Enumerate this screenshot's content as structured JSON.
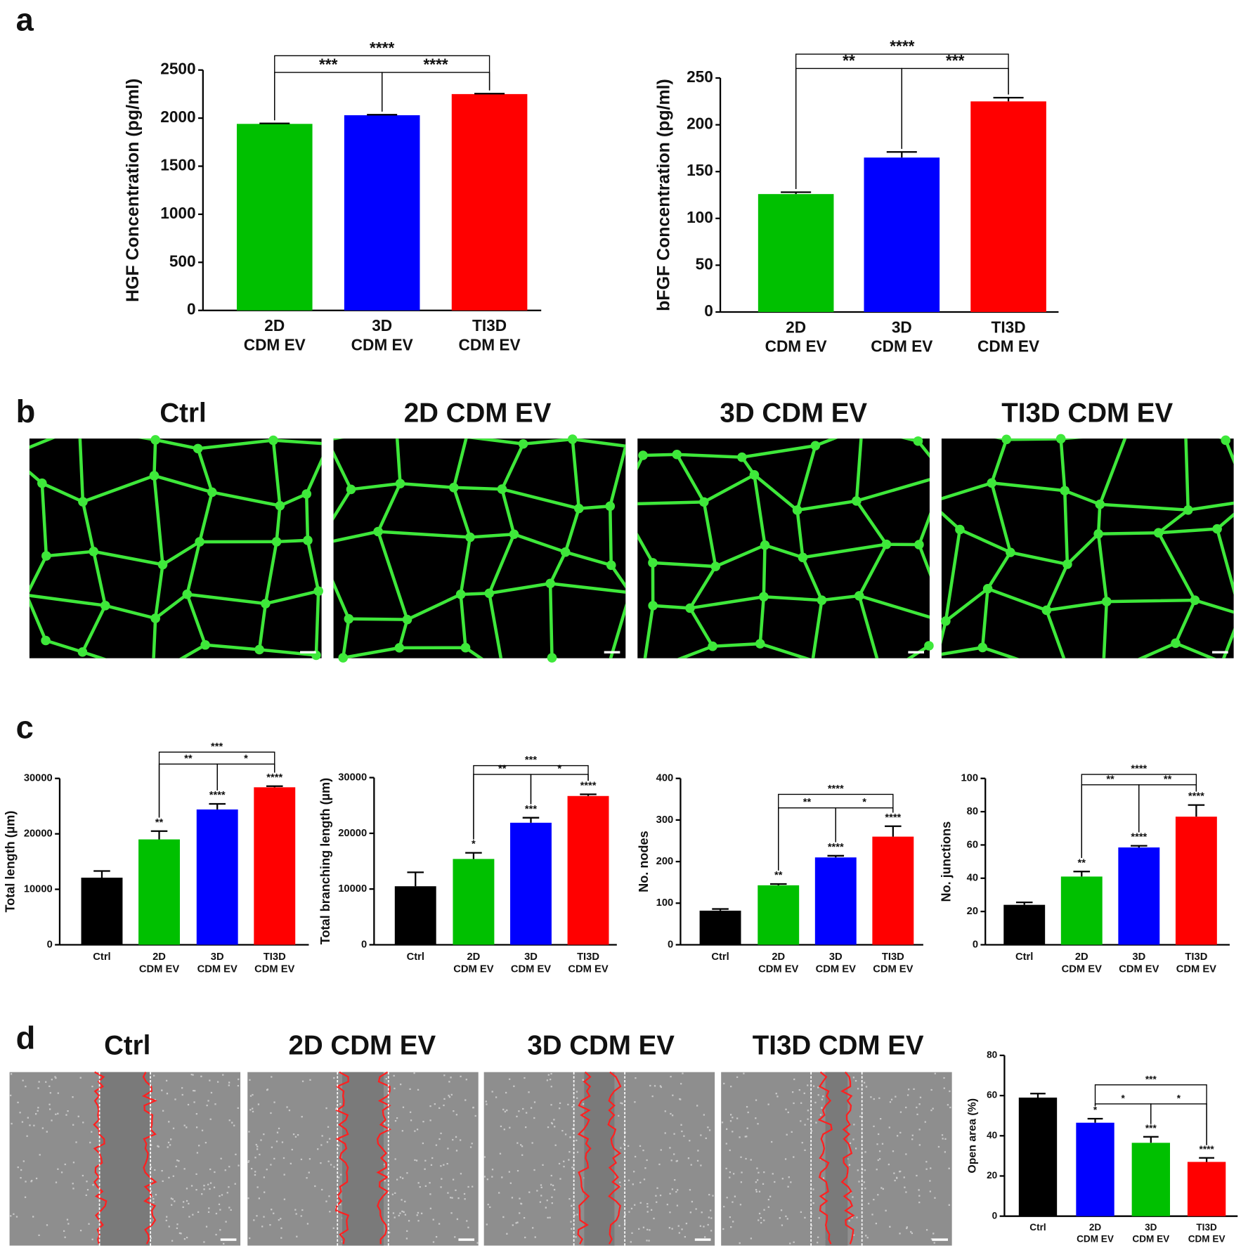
{
  "panel_labels": [
    "a",
    "b",
    "c",
    "d"
  ],
  "panel_b": {
    "titles": [
      "Ctrl",
      "2D CDM EV",
      "3D CDM EV",
      "TI3D CDM EV"
    ]
  },
  "panel_d": {
    "titles": [
      "Ctrl",
      "2D CDM EV",
      "3D CDM EV",
      "TI3D CDM EV"
    ]
  },
  "chart_data": [
    {
      "type": "bar",
      "ylabel": "HGF Concentration (pg/ml)",
      "categories": [
        [
          "2D",
          "CDM EV"
        ],
        [
          "3D",
          "CDM EV"
        ],
        [
          "TI3D",
          "CDM EV"
        ]
      ],
      "values": [
        1940,
        2030,
        2250
      ],
      "errors": [
        5,
        5,
        5
      ],
      "colors": [
        "#00c000",
        "#0000ff",
        "#ff0000"
      ],
      "ylim": [
        0,
        2500
      ],
      "yticks": [
        0,
        500,
        1000,
        1500,
        2000,
        2500
      ],
      "brackets": [
        {
          "from": 0,
          "to": 1,
          "label": "***"
        },
        {
          "from": 1,
          "to": 2,
          "label": "****"
        },
        {
          "from": 0,
          "to": 2,
          "label": "****"
        }
      ]
    },
    {
      "type": "bar",
      "ylabel": "bFGF Concentration (pg/ml)",
      "categories": [
        [
          "2D",
          "CDM EV"
        ],
        [
          "3D",
          "CDM EV"
        ],
        [
          "TI3D",
          "CDM EV"
        ]
      ],
      "values": [
        126,
        165,
        225
      ],
      "errors": [
        2,
        6,
        4
      ],
      "colors": [
        "#00c000",
        "#0000ff",
        "#ff0000"
      ],
      "ylim": [
        0,
        250
      ],
      "yticks": [
        0,
        50,
        100,
        150,
        200,
        250
      ],
      "brackets": [
        {
          "from": 0,
          "to": 1,
          "label": "**"
        },
        {
          "from": 1,
          "to": 2,
          "label": "***"
        },
        {
          "from": 0,
          "to": 2,
          "label": "****"
        }
      ]
    },
    {
      "type": "bar",
      "ylabel": "Total length (µm)",
      "categories": [
        [
          "Ctrl"
        ],
        [
          "2D",
          "CDM EV"
        ],
        [
          "3D",
          "CDM EV"
        ],
        [
          "TI3D",
          "CDM EV"
        ]
      ],
      "values": [
        12100,
        19000,
        24400,
        28400
      ],
      "errors": [
        1200,
        1500,
        1000,
        200
      ],
      "colors": [
        "#000000",
        "#00c000",
        "#0000ff",
        "#ff0000"
      ],
      "stars": [
        null,
        "**",
        "****",
        "****"
      ],
      "ylim": [
        0,
        30000
      ],
      "yticks": [
        0,
        10000,
        20000,
        30000
      ],
      "brackets": [
        {
          "from": 1,
          "to": 2,
          "label": "**"
        },
        {
          "from": 2,
          "to": 3,
          "label": "*"
        },
        {
          "from": 1,
          "to": 3,
          "label": "***"
        }
      ]
    },
    {
      "type": "bar",
      "ylabel": "Total branching length (µm)",
      "categories": [
        [
          "Ctrl"
        ],
        [
          "2D",
          "CDM EV"
        ],
        [
          "3D",
          "CDM EV"
        ],
        [
          "TI3D",
          "CDM EV"
        ]
      ],
      "values": [
        10500,
        15400,
        21900,
        26700
      ],
      "errors": [
        2500,
        1100,
        900,
        300
      ],
      "colors": [
        "#000000",
        "#00c000",
        "#0000ff",
        "#ff0000"
      ],
      "stars": [
        null,
        "*",
        "***",
        "****"
      ],
      "ylim": [
        0,
        30000
      ],
      "yticks": [
        0,
        10000,
        20000,
        30000
      ],
      "brackets": [
        {
          "from": 1,
          "to": 2,
          "label": "**"
        },
        {
          "from": 2,
          "to": 3,
          "label": "*"
        },
        {
          "from": 1,
          "to": 3,
          "label": "***"
        }
      ]
    },
    {
      "type": "bar",
      "ylabel": "No. nodes",
      "categories": [
        [
          "Ctrl"
        ],
        [
          "2D",
          "CDM EV"
        ],
        [
          "3D",
          "CDM EV"
        ],
        [
          "TI3D",
          "CDM EV"
        ]
      ],
      "values": [
        82,
        143,
        210,
        260
      ],
      "errors": [
        4,
        3,
        4,
        25
      ],
      "colors": [
        "#000000",
        "#00c000",
        "#0000ff",
        "#ff0000"
      ],
      "stars": [
        null,
        "**",
        "****",
        "****"
      ],
      "ylim": [
        0,
        400
      ],
      "yticks": [
        0,
        100,
        200,
        300,
        400
      ],
      "brackets": [
        {
          "from": 1,
          "to": 2,
          "label": "**"
        },
        {
          "from": 2,
          "to": 3,
          "label": "*"
        },
        {
          "from": 1,
          "to": 3,
          "label": "****"
        }
      ]
    },
    {
      "type": "bar",
      "ylabel": "No. junctions",
      "categories": [
        [
          "Ctrl"
        ],
        [
          "2D",
          "CDM EV"
        ],
        [
          "3D",
          "CDM EV"
        ],
        [
          "TI3D",
          "CDM EV"
        ]
      ],
      "values": [
        24,
        41,
        58.5,
        77
      ],
      "errors": [
        1.5,
        3,
        1,
        7
      ],
      "colors": [
        "#000000",
        "#00c000",
        "#0000ff",
        "#ff0000"
      ],
      "stars": [
        null,
        "**",
        "****",
        "****"
      ],
      "ylim": [
        0,
        100
      ],
      "yticks": [
        0,
        20,
        40,
        60,
        80,
        100
      ],
      "brackets": [
        {
          "from": 1,
          "to": 2,
          "label": "**"
        },
        {
          "from": 2,
          "to": 3,
          "label": "**"
        },
        {
          "from": 1,
          "to": 3,
          "label": "****"
        }
      ]
    },
    {
      "type": "bar",
      "ylabel": "Open area (%)",
      "categories": [
        [
          "Ctrl"
        ],
        [
          "2D",
          "CDM EV"
        ],
        [
          "3D",
          "CDM EV"
        ],
        [
          "TI3D",
          "CDM EV"
        ]
      ],
      "values": [
        59,
        46.5,
        36.5,
        27
      ],
      "errors": [
        2,
        2,
        3,
        2
      ],
      "colors": [
        "#000000",
        "#0000ff",
        "#00c000",
        "#ff0000"
      ],
      "stars": [
        null,
        "*",
        "***",
        "****"
      ],
      "ylim": [
        0,
        80
      ],
      "yticks": [
        0,
        20,
        40,
        60,
        80
      ],
      "brackets": [
        {
          "from": 1,
          "to": 2,
          "label": "*"
        },
        {
          "from": 2,
          "to": 3,
          "label": "*"
        },
        {
          "from": 1,
          "to": 3,
          "label": "***"
        }
      ]
    }
  ]
}
